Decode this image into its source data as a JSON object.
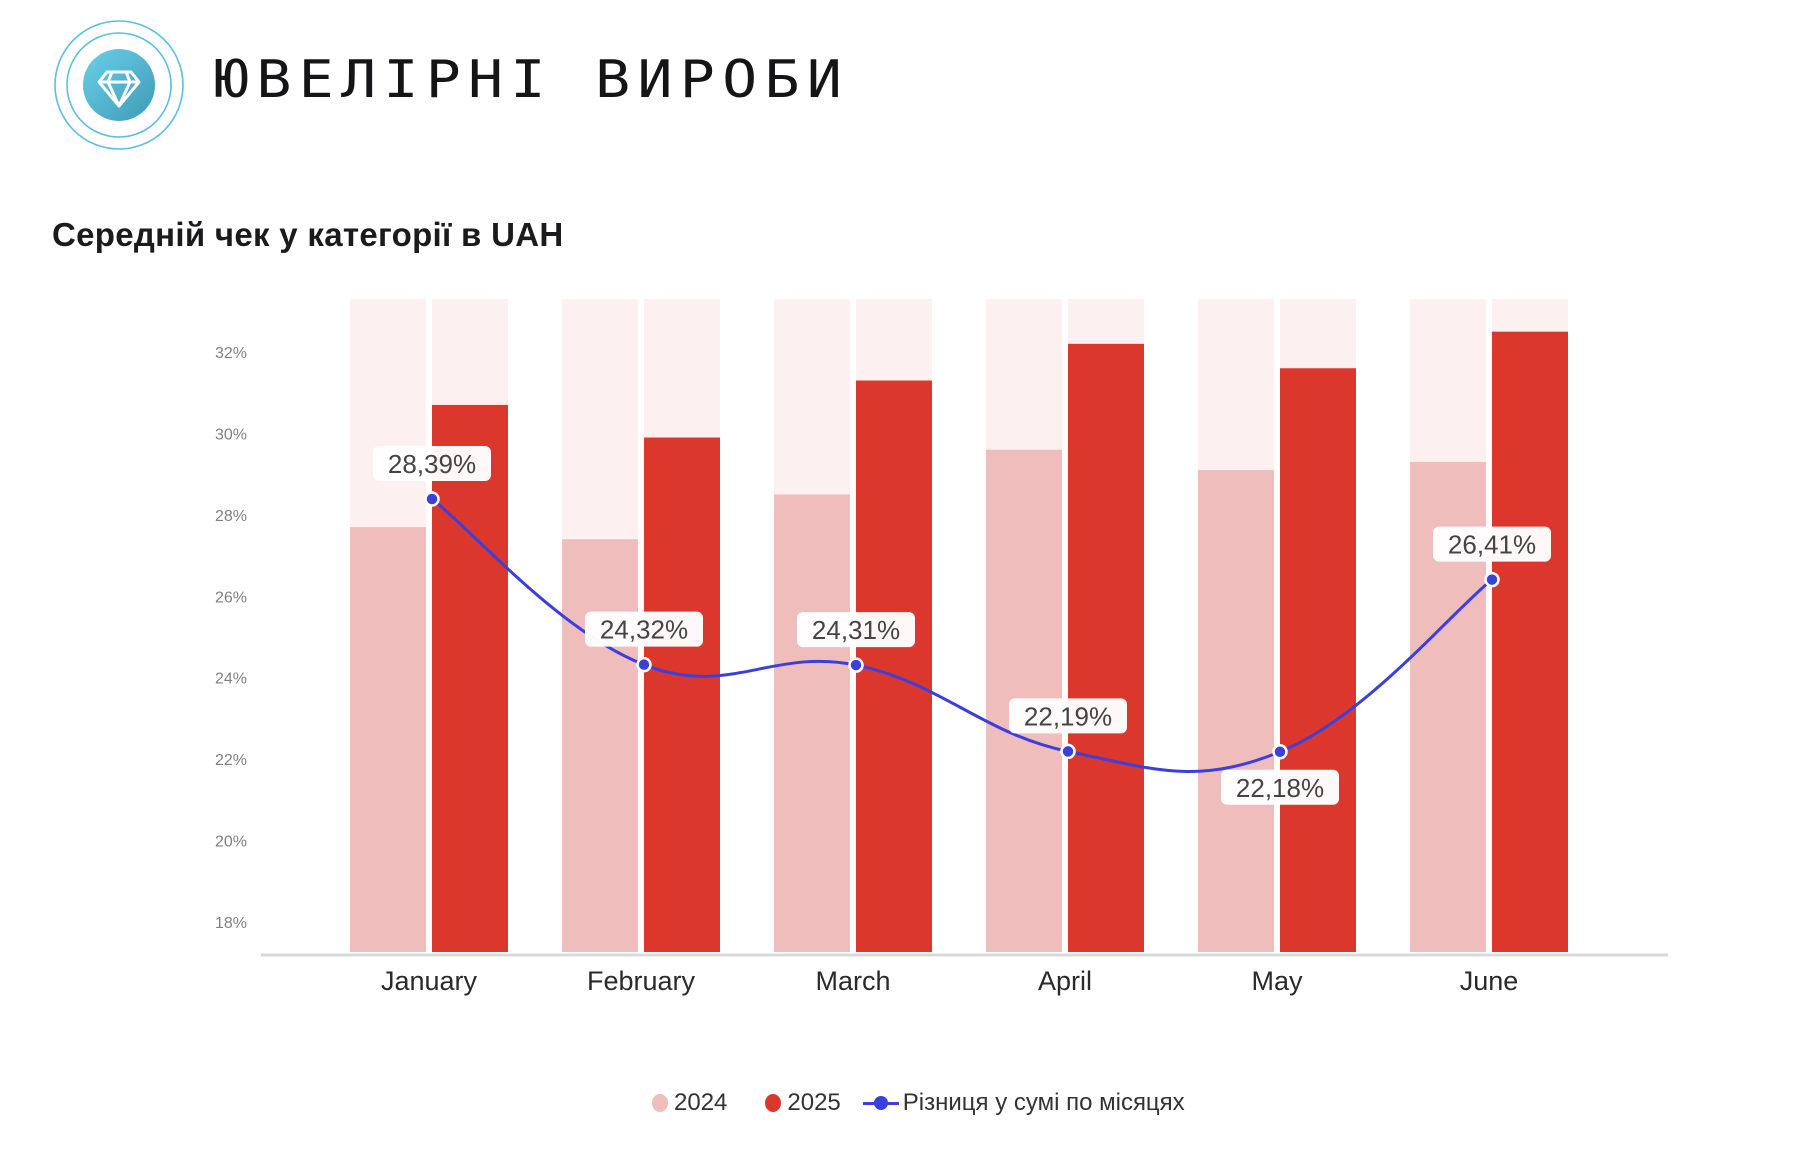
{
  "header": {
    "logo_icon": "diamond-icon",
    "title": "ЮВЕЛІРНІ ВИРОБИ",
    "subtitle": "Середній чек у категорії в UAH"
  },
  "colors": {
    "bar_2024": "#f0bdbd",
    "bar_2025": "#db372c",
    "bar_background": "#fdf0f0",
    "line": "#3b3fdc",
    "axis": "#d9d9d9",
    "logo_ring": "#5bbfdc",
    "logo_fill_start": "#6ad0e8",
    "logo_fill_end": "#3f9ab8"
  },
  "legend": {
    "items": [
      {
        "label": "2024",
        "type": "dot",
        "color_key": "bar_2024"
      },
      {
        "label": "2025",
        "type": "dot",
        "color_key": "bar_2025"
      },
      {
        "label": "Різниця у сумі по місяцях",
        "type": "line",
        "color_key": "line"
      }
    ]
  },
  "chart_data": {
    "type": "bar",
    "title": "Середній чек у категорії в UAH",
    "xlabel": "",
    "ylabel": "",
    "categories": [
      "January",
      "February",
      "March",
      "April",
      "May",
      "June"
    ],
    "yticks": [
      "32%",
      "30%",
      "28%",
      "26%",
      "24%",
      "22%",
      "20%",
      "18%"
    ],
    "ytick_values": [
      32,
      30,
      28,
      26,
      24,
      22,
      20,
      18
    ],
    "ylim": [
      17.1,
      33.3
    ],
    "grid": false,
    "legend_position": "bottom",
    "series": [
      {
        "name": "2024",
        "type": "bar",
        "values": [
          27.7,
          27.4,
          28.5,
          29.6,
          29.1,
          29.3
        ]
      },
      {
        "name": "2025",
        "type": "bar",
        "values": [
          30.7,
          29.9,
          31.3,
          32.2,
          31.6,
          32.5
        ]
      },
      {
        "name": "Різниця у сумі по місяцях",
        "type": "line",
        "values": [
          28.39,
          24.32,
          24.31,
          22.19,
          22.18,
          26.41
        ],
        "labels": [
          "28,39%",
          "24,32%",
          "24,31%",
          "22,19%",
          "22,18%",
          "26,41%"
        ],
        "label_positions": [
          "above",
          "above",
          "above",
          "above",
          "below",
          "above"
        ]
      }
    ]
  }
}
